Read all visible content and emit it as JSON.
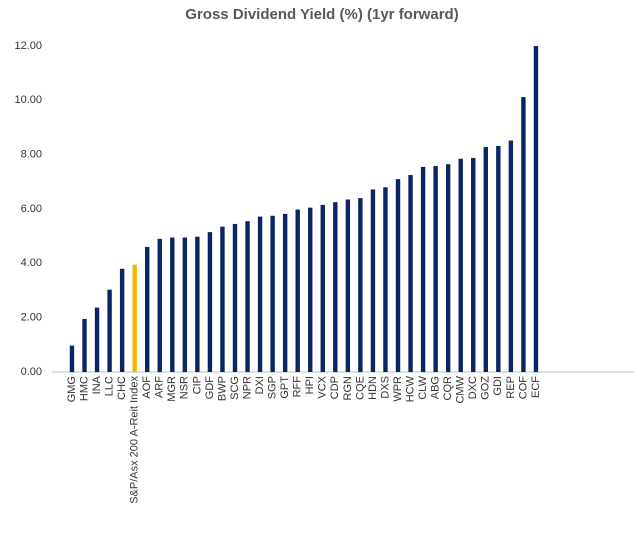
{
  "chart_data": {
    "type": "bar",
    "title": "Gross Dividend Yield (%) (1yr forward)",
    "categories": [
      "GMG",
      "HMC",
      "INA",
      "LLC",
      "CHC",
      "S&P/Asx 200 A-Reit Index",
      "AOF",
      "ARF",
      "MGR",
      "NSR",
      "CIP",
      "GDF",
      "BWP",
      "SCG",
      "NPR",
      "DXI",
      "SGP",
      "GPT",
      "RFF",
      "HPI",
      "VCX",
      "CDP",
      "RGN",
      "CQE",
      "HDN",
      "DXS",
      "WPR",
      "HCW",
      "CLW",
      "ABG",
      "CQR",
      "CMW",
      "DXC",
      "GOZ",
      "GDI",
      "REP",
      "COF",
      "ECF"
    ],
    "values": [
      0.97,
      1.95,
      2.37,
      3.03,
      3.8,
      3.95,
      4.6,
      4.9,
      4.95,
      4.95,
      4.98,
      5.15,
      5.35,
      5.45,
      5.55,
      5.72,
      5.75,
      5.82,
      5.98,
      6.05,
      6.15,
      6.25,
      6.35,
      6.4,
      6.72,
      6.8,
      7.1,
      7.25,
      7.55,
      7.58,
      7.65,
      7.85,
      7.88,
      8.28,
      8.32,
      8.52,
      10.12,
      12.0
    ],
    "colors": [
      "#0b2463",
      "#0b2463",
      "#0b2463",
      "#0b2463",
      "#0b2463",
      "#f2b800",
      "#0b2463",
      "#0b2463",
      "#0b2463",
      "#0b2463",
      "#0b2463",
      "#0b2463",
      "#0b2463",
      "#0b2463",
      "#0b2463",
      "#0b2463",
      "#0b2463",
      "#0b2463",
      "#0b2463",
      "#0b2463",
      "#0b2463",
      "#0b2463",
      "#0b2463",
      "#0b2463",
      "#0b2463",
      "#0b2463",
      "#0b2463",
      "#0b2463",
      "#0b2463",
      "#0b2463",
      "#0b2463",
      "#0b2463",
      "#0b2463",
      "#0b2463",
      "#0b2463",
      "#0b2463",
      "#0b2463",
      "#0b2463"
    ],
    "ylim": [
      0,
      12
    ],
    "yticks": [
      {
        "value": 0,
        "label": "0.00"
      },
      {
        "value": 2,
        "label": "2.00"
      },
      {
        "value": 4,
        "label": "4.00"
      },
      {
        "value": 6,
        "label": "6.00"
      },
      {
        "value": 8,
        "label": "8.00"
      },
      {
        "value": 10,
        "label": "10.00"
      },
      {
        "value": 12,
        "label": "12.00"
      }
    ],
    "grid": false
  }
}
